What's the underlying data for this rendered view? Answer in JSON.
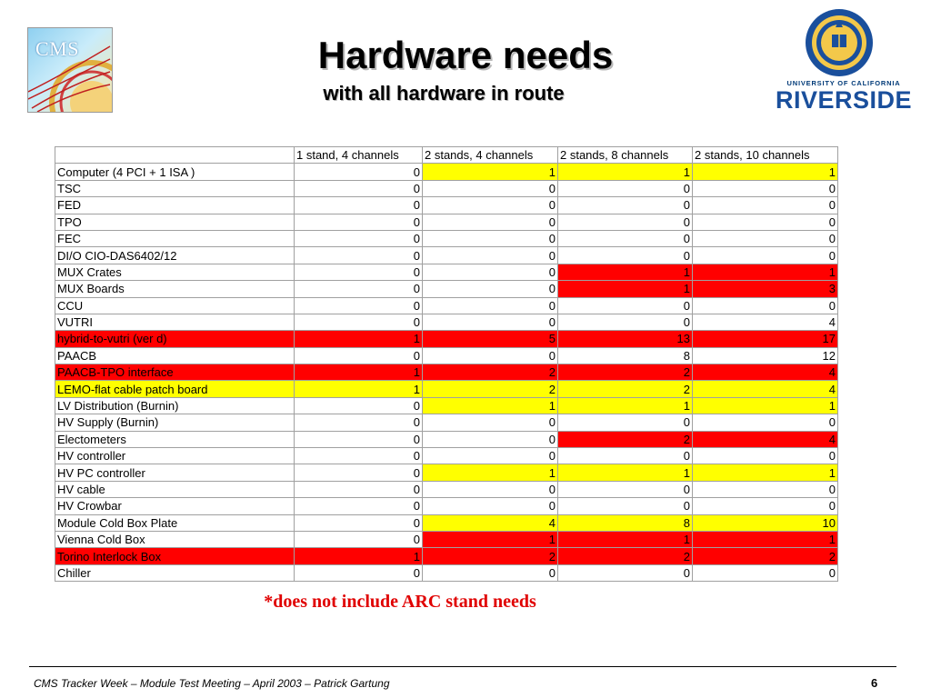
{
  "slide": {
    "title": "Hardware needs",
    "subtitle": "with all hardware in route",
    "note": "*does not include ARC stand needs",
    "footer": "CMS Tracker Week – Module Test Meeting – April 2003 – Patrick Gartung",
    "page_number": "6"
  },
  "logos": {
    "cms_text": "CMS",
    "ucr_university_text": "UNIVERSITY OF CALIFORNIA",
    "ucr_name_text": "RIVERSIDE"
  },
  "colors": {
    "yellow": "#ffff00",
    "red": "#ff0000",
    "white": "#ffffff",
    "note": "#e00000"
  },
  "table": {
    "headers": [
      "",
      "1 stand, 4 channels",
      "2 stands, 4 channels",
      "2 stands, 8 channels",
      "2 stands, 10 channels"
    ],
    "rows": [
      {
        "name": "Computer (4 PCI + 1 ISA )",
        "values": [
          "0",
          "1",
          "1",
          "1"
        ],
        "colors": [
          "w",
          "y",
          "y",
          "y"
        ]
      },
      {
        "name": "TSC",
        "values": [
          "0",
          "0",
          "0",
          "0"
        ],
        "colors": [
          "w",
          "w",
          "w",
          "w"
        ]
      },
      {
        "name": "FED",
        "values": [
          "0",
          "0",
          "0",
          "0"
        ],
        "colors": [
          "w",
          "w",
          "w",
          "w"
        ]
      },
      {
        "name": "TPO",
        "values": [
          "0",
          "0",
          "0",
          "0"
        ],
        "colors": [
          "w",
          "w",
          "w",
          "w"
        ]
      },
      {
        "name": "FEC",
        "values": [
          "0",
          "0",
          "0",
          "0"
        ],
        "colors": [
          "w",
          "w",
          "w",
          "w"
        ]
      },
      {
        "name": "DI/O CIO-DAS6402/12",
        "values": [
          "0",
          "0",
          "0",
          "0"
        ],
        "colors": [
          "w",
          "w",
          "w",
          "w"
        ]
      },
      {
        "name": "MUX Crates",
        "values": [
          "0",
          "0",
          "1",
          "1"
        ],
        "colors": [
          "w",
          "w",
          "r",
          "r"
        ]
      },
      {
        "name": "MUX Boards",
        "values": [
          "0",
          "0",
          "1",
          "3"
        ],
        "colors": [
          "w",
          "w",
          "r",
          "r"
        ]
      },
      {
        "name": "CCU",
        "values": [
          "0",
          "0",
          "0",
          "0"
        ],
        "colors": [
          "w",
          "w",
          "w",
          "w"
        ]
      },
      {
        "name": "VUTRI",
        "values": [
          "0",
          "0",
          "0",
          "4"
        ],
        "colors": [
          "w",
          "w",
          "w",
          "w"
        ]
      },
      {
        "name": "hybrid-to-vutri (ver d)",
        "values": [
          "1",
          "5",
          "13",
          "17"
        ],
        "colors": [
          "r",
          "r",
          "r",
          "r"
        ],
        "name_color": "r"
      },
      {
        "name": "PAACB",
        "values": [
          "0",
          "0",
          "8",
          "12"
        ],
        "colors": [
          "w",
          "w",
          "w",
          "w"
        ]
      },
      {
        "name": "PAACB-TPO interface",
        "values": [
          "1",
          "2",
          "2",
          "4"
        ],
        "colors": [
          "r",
          "r",
          "r",
          "r"
        ],
        "name_color": "r"
      },
      {
        "name": "LEMO-flat cable patch board",
        "values": [
          "1",
          "2",
          "2",
          "4"
        ],
        "colors": [
          "y",
          "y",
          "y",
          "y"
        ],
        "name_color": "y"
      },
      {
        "name": "LV Distribution (Burnin)",
        "values": [
          "0",
          "1",
          "1",
          "1"
        ],
        "colors": [
          "w",
          "y",
          "y",
          "y"
        ]
      },
      {
        "name": "HV Supply (Burnin)",
        "values": [
          "0",
          "0",
          "0",
          "0"
        ],
        "colors": [
          "w",
          "w",
          "w",
          "w"
        ]
      },
      {
        "name": "Electometers",
        "values": [
          "0",
          "0",
          "2",
          "4"
        ],
        "colors": [
          "w",
          "w",
          "r",
          "r"
        ]
      },
      {
        "name": "HV controller",
        "values": [
          "0",
          "0",
          "0",
          "0"
        ],
        "colors": [
          "w",
          "w",
          "w",
          "w"
        ]
      },
      {
        "name": "HV PC controller",
        "values": [
          "0",
          "1",
          "1",
          "1"
        ],
        "colors": [
          "w",
          "y",
          "y",
          "y"
        ]
      },
      {
        "name": "HV cable",
        "values": [
          "0",
          "0",
          "0",
          "0"
        ],
        "colors": [
          "w",
          "w",
          "w",
          "w"
        ]
      },
      {
        "name": "HV Crowbar",
        "values": [
          "0",
          "0",
          "0",
          "0"
        ],
        "colors": [
          "w",
          "w",
          "w",
          "w"
        ]
      },
      {
        "name": "Module Cold Box Plate",
        "values": [
          "0",
          "4",
          "8",
          "10"
        ],
        "colors": [
          "w",
          "y",
          "y",
          "y"
        ]
      },
      {
        "name": "Vienna Cold Box",
        "values": [
          "0",
          "1",
          "1",
          "1"
        ],
        "colors": [
          "w",
          "r",
          "r",
          "r"
        ]
      },
      {
        "name": "Torino Interlock Box",
        "values": [
          "1",
          "2",
          "2",
          "2"
        ],
        "colors": [
          "r",
          "r",
          "r",
          "r"
        ],
        "name_color": "r"
      },
      {
        "name": "Chiller",
        "values": [
          "0",
          "0",
          "0",
          "0"
        ],
        "colors": [
          "w",
          "w",
          "w",
          "w"
        ]
      }
    ]
  }
}
